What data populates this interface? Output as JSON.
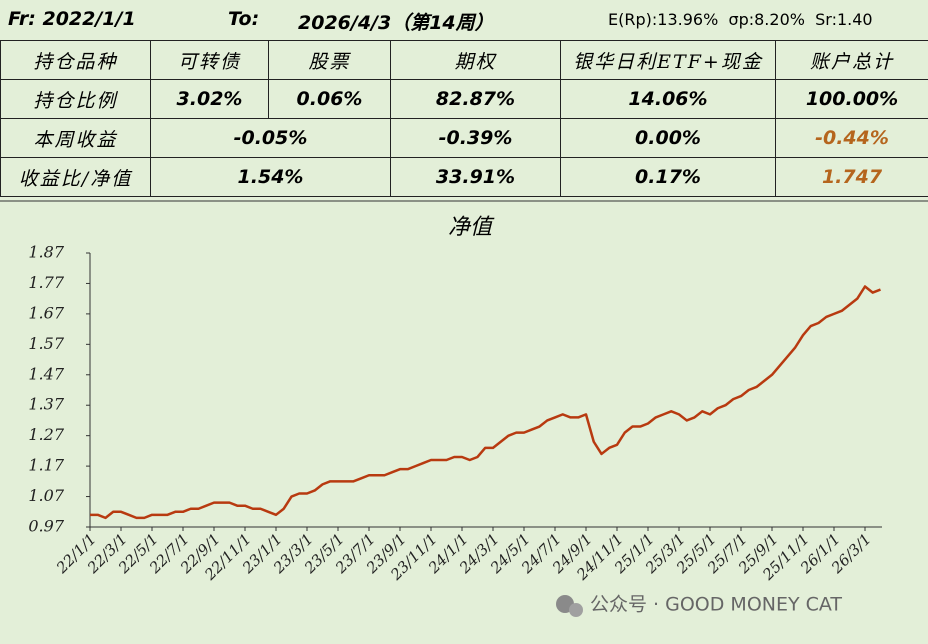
{
  "header": {
    "from": "Fr: 2022/1/1",
    "to_label": "To:",
    "to": "2026/4/3（第14周）",
    "stats": "E(Rp):13.96%  σp:8.20%  Sr:1.40"
  },
  "table": {
    "rows": [
      [
        "持仓品种",
        "可转债",
        "股票",
        "期权",
        "银华日利ETF+现金",
        "账户总计"
      ],
      [
        "持仓比例",
        "3.02%",
        "0.06%",
        "82.87%",
        "14.06%",
        "100.00%"
      ],
      [
        "本周收益",
        "-0.05%",
        "-0.39%",
        "0.00%",
        "-0.44%"
      ],
      [
        "收益比/净值",
        "1.54%",
        "33.91%",
        "0.17%",
        "1.747"
      ]
    ]
  },
  "chart_data": {
    "type": "line",
    "title": "净值",
    "color": "#b83a10",
    "categories": [
      "22/1/1",
      null,
      null,
      null,
      "22/3/1",
      null,
      null,
      null,
      "22/5/1",
      null,
      null,
      null,
      "22/7/1",
      null,
      null,
      null,
      "22/9/1",
      null,
      null,
      null,
      "22/11/1",
      null,
      null,
      null,
      "23/1/1",
      null,
      null,
      null,
      "23/3/1",
      null,
      null,
      null,
      "23/5/1",
      null,
      null,
      null,
      "23/7/1",
      null,
      null,
      null,
      "23/9/1",
      null,
      null,
      null,
      "23/11/1",
      null,
      null,
      null,
      "24/1/1",
      null,
      null,
      null,
      "24/3/1",
      null,
      null,
      null,
      "24/5/1",
      null,
      null,
      null,
      "24/7/1",
      null,
      null,
      null,
      "24/9/1",
      null,
      null,
      null,
      "24/11/1",
      null,
      null,
      null,
      "25/1/1",
      null,
      null,
      null,
      "25/3/1",
      null,
      null,
      null,
      "25/5/1",
      null,
      null,
      null,
      "25/7/1",
      null,
      null,
      null,
      "25/9/1",
      null,
      null,
      null,
      "25/11/1",
      null,
      null,
      null,
      "26/1/1",
      null,
      null,
      null,
      "26/3/1",
      null,
      null
    ],
    "values": [
      1.01,
      1.01,
      1.0,
      1.02,
      1.02,
      1.01,
      1.0,
      1.0,
      1.01,
      1.01,
      1.01,
      1.02,
      1.02,
      1.03,
      1.03,
      1.04,
      1.05,
      1.05,
      1.05,
      1.04,
      1.04,
      1.03,
      1.03,
      1.02,
      1.01,
      1.03,
      1.07,
      1.08,
      1.08,
      1.09,
      1.11,
      1.12,
      1.12,
      1.12,
      1.12,
      1.13,
      1.14,
      1.14,
      1.14,
      1.15,
      1.16,
      1.16,
      1.17,
      1.18,
      1.19,
      1.19,
      1.19,
      1.2,
      1.2,
      1.19,
      1.2,
      1.23,
      1.23,
      1.25,
      1.27,
      1.28,
      1.28,
      1.29,
      1.3,
      1.32,
      1.33,
      1.34,
      1.33,
      1.33,
      1.34,
      1.25,
      1.21,
      1.23,
      1.24,
      1.28,
      1.3,
      1.3,
      1.31,
      1.33,
      1.34,
      1.35,
      1.34,
      1.32,
      1.33,
      1.35,
      1.34,
      1.36,
      1.37,
      1.39,
      1.4,
      1.42,
      1.43,
      1.45,
      1.47,
      1.5,
      1.53,
      1.56,
      1.6,
      1.63,
      1.64,
      1.66,
      1.67,
      1.68,
      1.7,
      1.72,
      1.76,
      1.74,
      1.75
    ],
    "ylim": [
      0.97,
      1.87
    ],
    "yticks": [
      0.97,
      1.07,
      1.17,
      1.27,
      1.37,
      1.47,
      1.57,
      1.67,
      1.77,
      1.87
    ]
  },
  "watermark": "公众号 · GOOD MONEY CAT"
}
